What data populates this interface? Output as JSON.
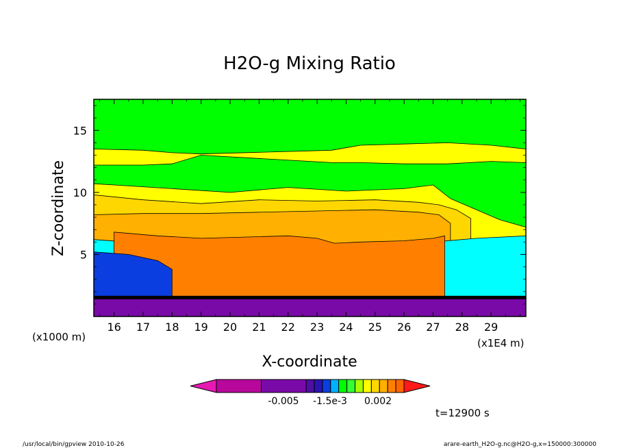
{
  "chart_data": {
    "type": "heatmap",
    "title": "H2O-g Mixing Ratio",
    "xlabel": "X-coordinate",
    "ylabel": "Z-coordinate",
    "x_unit_left": "(x1000 m)",
    "x_unit_right": "(x1E4 m)",
    "x_ticks": [
      "16",
      "17",
      "18",
      "19",
      "20",
      "21",
      "22",
      "23",
      "24",
      "25",
      "26",
      "27",
      "28",
      "29"
    ],
    "y_ticks": [
      "5",
      "10",
      "15"
    ],
    "xlim": [
      15.3,
      30.2
    ],
    "ylim": [
      0,
      17.5
    ],
    "colorbar": {
      "labels": [
        "-0.005",
        "-1.5e-3",
        "0.002"
      ],
      "colors": [
        "#e619b3",
        "#b8089b",
        "#7a0aa8",
        "#4f0fa0",
        "#2a14b0",
        "#0a3ee0",
        "#00b2ff",
        "#00ff00",
        "#33ff33",
        "#a8ff00",
        "#ffff00",
        "#ffd700",
        "#ffb000",
        "#ff8000",
        "#ff6600",
        "#ff1a1a"
      ]
    },
    "time_label": "t=12900 s",
    "grid": false,
    "layers": [
      {
        "name": "base",
        "color": "#00ff00",
        "top": [
          17.5,
          17.5
        ]
      },
      {
        "name": "upper-yellow-band",
        "color": "#ffff00",
        "x": [
          15.3,
          17.0,
          18.0,
          19.0,
          23.5,
          24.5,
          26.0,
          27.5,
          29.0,
          30.2
        ],
        "bottom": [
          12.2,
          12.2,
          12.3,
          13.0,
          12.4,
          12.4,
          12.3,
          12.3,
          12.5,
          12.4
        ],
        "top": [
          13.5,
          13.4,
          13.2,
          13.1,
          13.4,
          13.8,
          13.9,
          14.0,
          13.8,
          13.5
        ]
      },
      {
        "name": "cloud-yellow",
        "color": "#ffff00",
        "x": [
          15.3,
          16.0,
          18.0,
          20.0,
          22.0,
          24.0,
          26.0,
          27.0,
          27.6,
          28.5,
          29.3,
          30.2
        ],
        "top": [
          10.7,
          10.6,
          10.3,
          10.0,
          10.4,
          10.1,
          10.3,
          10.6,
          9.5,
          8.6,
          7.8,
          7.2
        ]
      },
      {
        "name": "cloud-lightorange",
        "color": "#ffd700",
        "x": [
          15.3,
          17.0,
          19.0,
          21.0,
          23.0,
          25.0,
          26.5,
          27.2,
          27.8,
          28.3
        ],
        "top": [
          9.8,
          9.4,
          9.1,
          9.4,
          9.3,
          9.4,
          9.2,
          9.0,
          8.6,
          7.9
        ]
      },
      {
        "name": "cloud-orange",
        "color": "#ffb000",
        "x": [
          15.3,
          17.0,
          19.0,
          21.0,
          23.0,
          25.0,
          26.5,
          27.2,
          27.6
        ],
        "top": [
          8.2,
          8.3,
          8.3,
          8.4,
          8.5,
          8.6,
          8.4,
          8.2,
          7.5
        ]
      },
      {
        "name": "cyan-region",
        "color": "#00ffff",
        "x": [
          15.3,
          16.5,
          18.5,
          20.5,
          22.5,
          24.0,
          25.5,
          27.0,
          28.5,
          30.2
        ],
        "top": [
          6.2,
          6.0,
          5.2,
          4.5,
          4.7,
          5.3,
          5.6,
          6.0,
          6.3,
          6.5
        ]
      },
      {
        "name": "dark-orange-core",
        "color": "#ff8000",
        "x": [
          16.0,
          17.5,
          19.0,
          20.5,
          22.0,
          23.0,
          23.6,
          24.5,
          26.0,
          27.0,
          27.4
        ],
        "top": [
          6.8,
          6.5,
          6.3,
          6.4,
          6.5,
          6.3,
          5.9,
          6.0,
          6.1,
          6.3,
          6.5
        ]
      },
      {
        "name": "blue-patch",
        "color": "#0a3ee0",
        "x": [
          15.3,
          16.5,
          17.5,
          18.0
        ],
        "top": [
          5.2,
          5.0,
          4.5,
          3.8
        ]
      },
      {
        "name": "purple-surface",
        "color": "#7a0aa8",
        "x": [
          15.3,
          30.2
        ],
        "top": [
          1.5,
          1.5
        ]
      }
    ]
  },
  "footer": {
    "left": "/usr/local/bin/gpview  2010-10-26",
    "right": "arare-earth_H2O-g.nc@H2O-g,x=150000:300000"
  }
}
